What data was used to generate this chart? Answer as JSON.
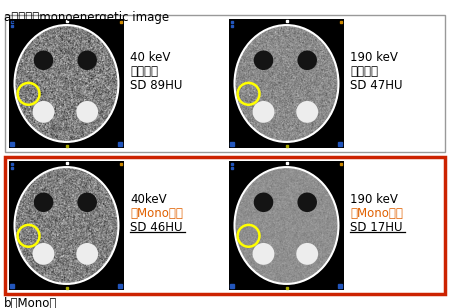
{
  "title_top": "a：従来のmonoenergetic image",
  "title_bottom": "b：Mono＋",
  "panels": [
    {
      "kev": "40 keV",
      "type": "（従来）",
      "sd": "SD 89HU",
      "underline": false,
      "type_color": "#000000",
      "noise": 0.22,
      "bg": 0.5,
      "seed": 10,
      "row": 0,
      "col": 0
    },
    {
      "kev": "190 keV",
      "type": "（従来）",
      "sd": "SD 47HU",
      "underline": false,
      "type_color": "#000000",
      "noise": 0.12,
      "bg": 0.54,
      "seed": 20,
      "row": 0,
      "col": 1
    },
    {
      "kev": "40keV",
      "type": "（Mono＋）",
      "sd": "SD 46HU",
      "underline": true,
      "type_color": "#E06000",
      "noise": 0.2,
      "bg": 0.5,
      "seed": 30,
      "row": 1,
      "col": 0
    },
    {
      "kev": "190 keV",
      "type": "（Mono＋）",
      "sd": "SD 17HU",
      "underline": true,
      "type_color": "#E06000",
      "noise": 0.06,
      "bg": 0.56,
      "seed": 40,
      "row": 1,
      "col": 1
    }
  ],
  "top_border_color": "#999999",
  "bot_border_color": "#CC2200",
  "bg_color": "#ffffff",
  "font_size_title": 8.5,
  "font_size_label": 8.5,
  "font_size_bottom": 8.5,
  "figw": 4.5,
  "figh": 3.08,
  "dpi": 100
}
